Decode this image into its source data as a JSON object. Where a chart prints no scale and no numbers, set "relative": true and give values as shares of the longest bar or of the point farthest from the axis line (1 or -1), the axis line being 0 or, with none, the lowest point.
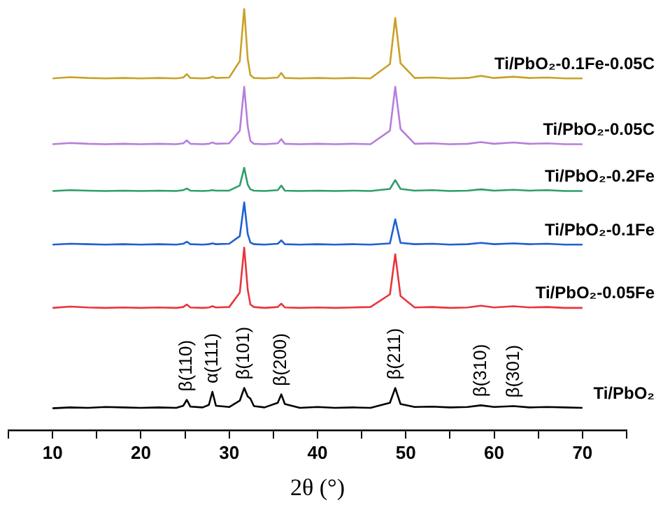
{
  "chart_data": {
    "type": "line",
    "relative": true,
    "xlabel": "2θ (°)",
    "xlim": [
      5,
      75
    ],
    "xticks": [
      {
        "value": 5,
        "label": null
      },
      10,
      {
        "value": 15,
        "label": null
      },
      20,
      {
        "value": 25,
        "label": null
      },
      30,
      {
        "value": 35,
        "label": null
      },
      40,
      {
        "value": 45,
        "label": null
      },
      50,
      {
        "value": 55,
        "label": null
      },
      60,
      {
        "value": 65,
        "label": null
      },
      70,
      {
        "value": 75,
        "label": null
      }
    ],
    "tick_labels": "x",
    "legend": false,
    "marker": "none",
    "line_style": "solid",
    "x": [
      10,
      12,
      14,
      16,
      18,
      20,
      22,
      24,
      24.8,
      25.2,
      25.6,
      27,
      27.7,
      28.1,
      28.5,
      30,
      31.2,
      31.7,
      32.1,
      32.4,
      32.8,
      34,
      35.5,
      35.9,
      36.3,
      38,
      40,
      42,
      44,
      46,
      48.2,
      48.8,
      49.4,
      51,
      53,
      55,
      57,
      58.5,
      60,
      62.2,
      64,
      66,
      68,
      70
    ],
    "series": [
      {
        "name": "Ti/PbO₂-0.1Fe-0.05C",
        "color": "#c9a227",
        "values": [
          0.834,
          0.837,
          0.835,
          0.834,
          0.835,
          0.834,
          0.835,
          0.834,
          0.836,
          0.844,
          0.835,
          0.834,
          0.835,
          0.838,
          0.835,
          0.836,
          0.875,
          1.0,
          0.88,
          0.842,
          0.835,
          0.834,
          0.836,
          0.847,
          0.835,
          0.834,
          0.835,
          0.834,
          0.835,
          0.834,
          0.868,
          0.977,
          0.87,
          0.835,
          0.836,
          0.834,
          0.835,
          0.84,
          0.835,
          0.838,
          0.835,
          0.836,
          0.834,
          0.834
        ]
      },
      {
        "name": "Ti/PbO₂-0.05C",
        "color": "#b57edc",
        "values": [
          0.678,
          0.681,
          0.679,
          0.678,
          0.679,
          0.678,
          0.679,
          0.678,
          0.68,
          0.687,
          0.679,
          0.678,
          0.679,
          0.682,
          0.679,
          0.68,
          0.71,
          0.814,
          0.72,
          0.686,
          0.679,
          0.678,
          0.68,
          0.69,
          0.679,
          0.678,
          0.679,
          0.678,
          0.679,
          0.678,
          0.71,
          0.814,
          0.714,
          0.679,
          0.68,
          0.678,
          0.679,
          0.683,
          0.679,
          0.682,
          0.679,
          0.68,
          0.678,
          0.678
        ]
      },
      {
        "name": "Ti/PbO₂-0.2Fe",
        "color": "#2e9e6a",
        "values": [
          0.567,
          0.569,
          0.568,
          0.567,
          0.568,
          0.567,
          0.568,
          0.567,
          0.569,
          0.573,
          0.568,
          0.567,
          0.568,
          0.569,
          0.568,
          0.568,
          0.58,
          0.622,
          0.582,
          0.571,
          0.568,
          0.567,
          0.569,
          0.58,
          0.568,
          0.567,
          0.568,
          0.567,
          0.568,
          0.567,
          0.572,
          0.593,
          0.572,
          0.568,
          0.569,
          0.567,
          0.568,
          0.571,
          0.568,
          0.57,
          0.568,
          0.569,
          0.567,
          0.567
        ]
      },
      {
        "name": "Ti/PbO₂-0.1Fe",
        "color": "#1f5fd6",
        "values": [
          0.44,
          0.442,
          0.441,
          0.44,
          0.441,
          0.44,
          0.441,
          0.44,
          0.442,
          0.447,
          0.441,
          0.44,
          0.441,
          0.443,
          0.441,
          0.442,
          0.46,
          0.54,
          0.465,
          0.445,
          0.441,
          0.44,
          0.442,
          0.45,
          0.441,
          0.44,
          0.441,
          0.44,
          0.441,
          0.44,
          0.443,
          0.5,
          0.444,
          0.441,
          0.442,
          0.44,
          0.441,
          0.444,
          0.441,
          0.443,
          0.441,
          0.442,
          0.44,
          0.44
        ]
      },
      {
        "name": "Ti/PbO₂-0.05Fe",
        "color": "#e8363c",
        "values": [
          0.29,
          0.293,
          0.291,
          0.29,
          0.291,
          0.29,
          0.291,
          0.29,
          0.292,
          0.298,
          0.291,
          0.29,
          0.291,
          0.294,
          0.291,
          0.292,
          0.326,
          0.433,
          0.333,
          0.298,
          0.292,
          0.29,
          0.292,
          0.3,
          0.291,
          0.29,
          0.291,
          0.29,
          0.291,
          0.292,
          0.322,
          0.417,
          0.318,
          0.291,
          0.292,
          0.29,
          0.291,
          0.295,
          0.291,
          0.294,
          0.291,
          0.292,
          0.29,
          0.29
        ]
      },
      {
        "name": "Ti/PbO₂",
        "color": "#000000",
        "values": [
          0.052,
          0.054,
          0.053,
          0.055,
          0.054,
          0.053,
          0.054,
          0.053,
          0.058,
          0.072,
          0.056,
          0.054,
          0.06,
          0.091,
          0.058,
          0.055,
          0.07,
          0.1,
          0.08,
          0.075,
          0.057,
          0.054,
          0.065,
          0.085,
          0.062,
          0.053,
          0.055,
          0.053,
          0.054,
          0.053,
          0.065,
          0.1,
          0.062,
          0.055,
          0.056,
          0.054,
          0.055,
          0.059,
          0.055,
          0.057,
          0.054,
          0.055,
          0.054,
          0.053
        ]
      }
    ],
    "annotations": [
      {
        "text": "β(110)",
        "x": 25.2,
        "y": 0.072
      },
      {
        "text": "α(111)",
        "x": 28.1,
        "y": 0.091
      },
      {
        "text": "β(101)",
        "x": 31.7,
        "y": 0.1
      },
      {
        "text": "β(200)",
        "x": 35.9,
        "y": 0.085
      },
      {
        "text": "β(211)",
        "x": 48.8,
        "y": 0.1
      },
      {
        "text": "β(310)",
        "x": 58.5,
        "y": 0.059
      },
      {
        "text": "β(301)",
        "x": 62.2,
        "y": 0.057
      }
    ]
  }
}
